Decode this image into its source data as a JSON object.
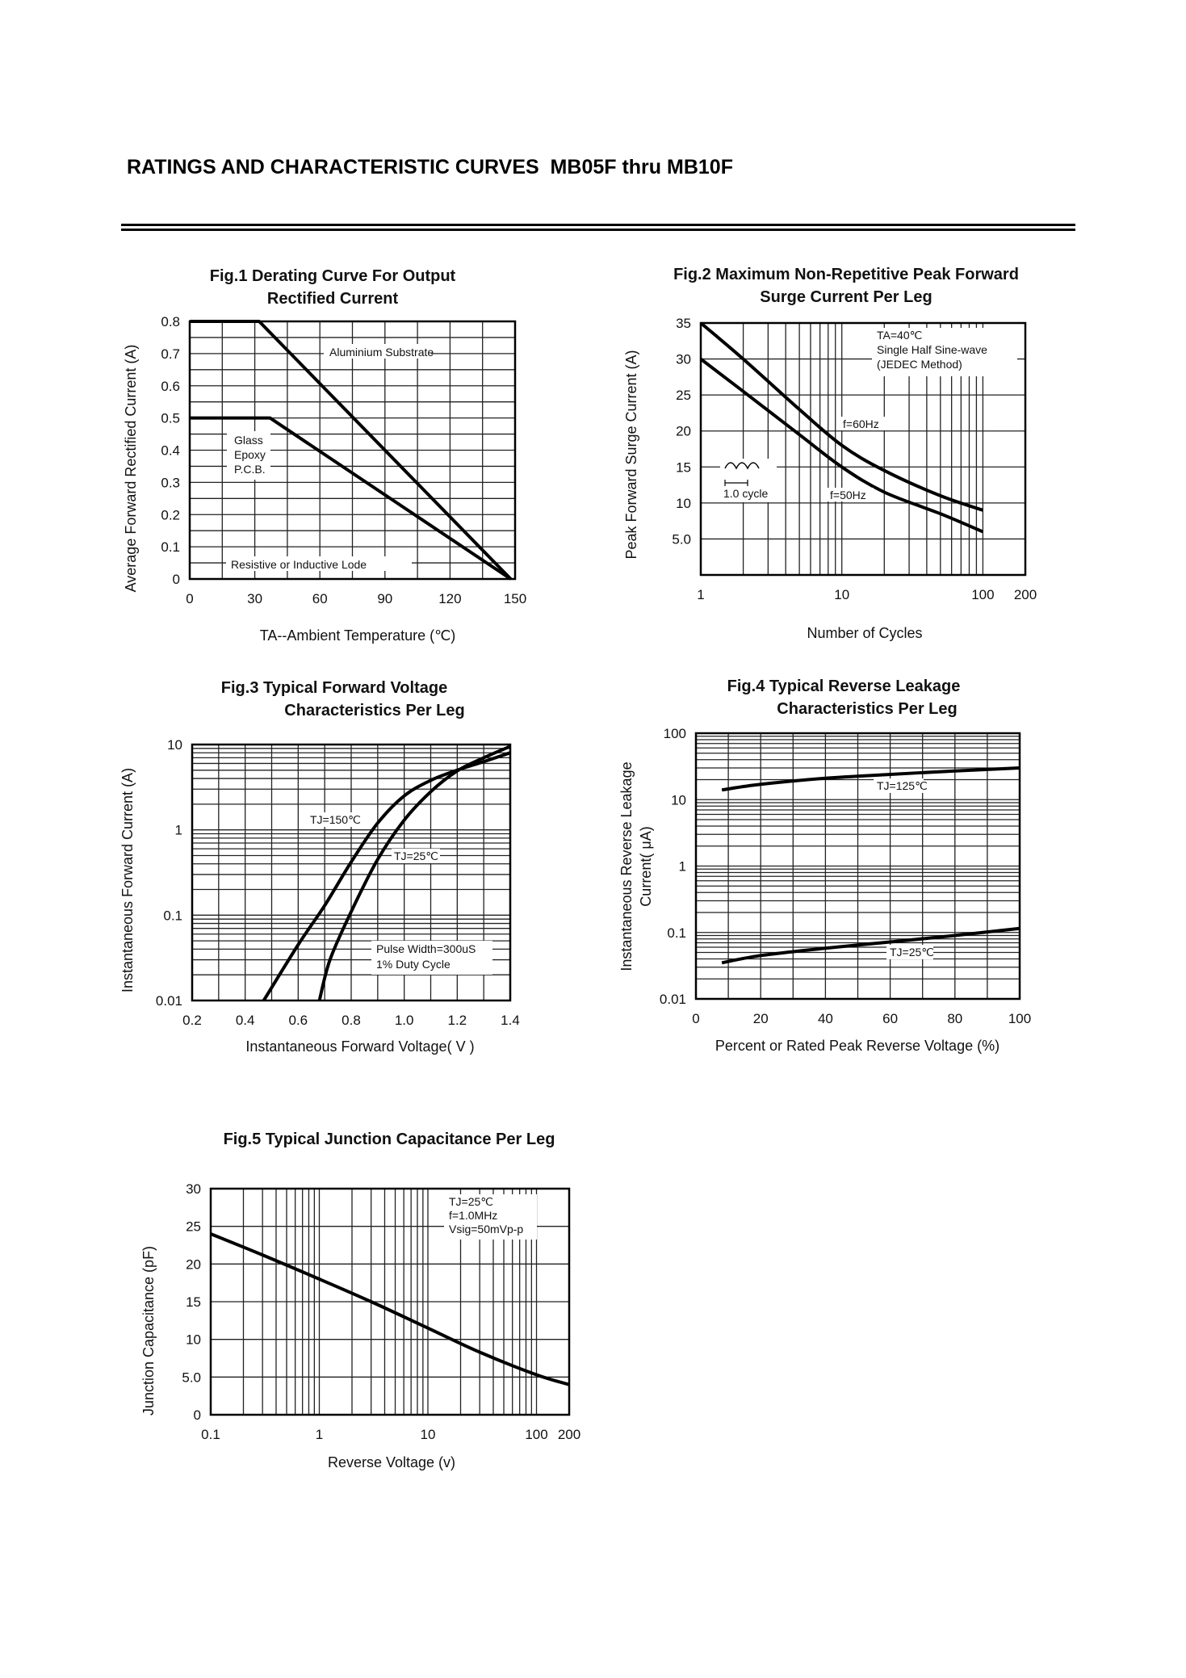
{
  "page": {
    "title": "RATINGS AND CHARACTERISTIC CURVES  MB05F thru MB10F"
  },
  "chart_data": [
    {
      "id": "fig1",
      "type": "line",
      "title_lines": [
        "Fig.1 Derating Curve For Output",
        "Rectified Current"
      ],
      "xlabel": "TA--Ambient Temperature (℃)",
      "ylabel": "Average Forward Rectified Current (A)",
      "xlim": [
        0,
        150
      ],
      "ylim": [
        0,
        0.8
      ],
      "xscale": "linear",
      "yscale": "linear",
      "xticks": [
        0,
        30,
        60,
        90,
        120,
        150
      ],
      "xtick_labels": [
        "0",
        "30",
        "60",
        "90",
        "120",
        "150"
      ],
      "yticks": [
        0,
        0.1,
        0.2,
        0.3,
        0.4,
        0.5,
        0.6,
        0.7,
        0.8
      ],
      "ytick_labels": [
        "0",
        "0.1",
        "0.2",
        "0.3",
        "0.4",
        "0.5",
        "0.6",
        "0.7",
        "0.8"
      ],
      "grid": true,
      "series": [
        {
          "name": "Aluminium Substrate",
          "x": [
            0,
            32,
            148
          ],
          "y": [
            0.8,
            0.8,
            0
          ]
        },
        {
          "name": "Glass Epoxy P.C.B.",
          "x": [
            0,
            37,
            148
          ],
          "y": [
            0.5,
            0.5,
            0
          ]
        }
      ],
      "annotations": [
        "Aluminium Substrate",
        "Glass",
        "Epoxy",
        "P.C.B.",
        "Resistive or Inductive Lode"
      ]
    },
    {
      "id": "fig2",
      "type": "line",
      "title_lines": [
        "Fig.2 Maximum Non-Repetitive Peak Forward",
        "Surge Current Per Leg"
      ],
      "xlabel": "Number of Cycles",
      "ylabel": "Peak Forward Surge Current (A)",
      "xlim": [
        1,
        200
      ],
      "ylim": [
        0,
        35
      ],
      "xscale": "log",
      "yscale": "linear",
      "xticks": [
        1,
        10,
        100,
        200
      ],
      "xtick_labels": [
        "1",
        "10",
        "100",
        "200"
      ],
      "yticks": [
        5,
        10,
        15,
        20,
        25,
        30,
        35
      ],
      "ytick_labels": [
        "5.0",
        "10",
        "15",
        "20",
        "25",
        "30",
        "35"
      ],
      "grid": true,
      "series": [
        {
          "name": "f=60Hz",
          "x": [
            1,
            2,
            5,
            10,
            20,
            50,
            100
          ],
          "y": [
            35,
            30,
            23,
            18,
            14.5,
            11,
            9
          ]
        },
        {
          "name": "f=50Hz",
          "x": [
            1,
            2,
            5,
            10,
            20,
            50,
            100
          ],
          "y": [
            30,
            25.5,
            19.5,
            15,
            11.5,
            8.5,
            6
          ]
        }
      ],
      "annotations": [
        "TA=40℃",
        "Single Half Sine-wave",
        "(JEDEC Method)",
        "f=60Hz",
        "f=50Hz",
        "1.0 cycle"
      ]
    },
    {
      "id": "fig3",
      "type": "line",
      "title_lines": [
        "Fig.3 Typical Forward Voltage",
        "Characteristics Per Leg"
      ],
      "xlabel": "Instantaneous Forward Voltage( V )",
      "ylabel": "Instantaneous Forward Current (A)",
      "xlim": [
        0.2,
        1.4
      ],
      "ylim": [
        0.01,
        10
      ],
      "xscale": "linear",
      "yscale": "log",
      "xticks": [
        0.2,
        0.4,
        0.6,
        0.8,
        1.0,
        1.2,
        1.4
      ],
      "xtick_labels": [
        "0.2",
        "0.4",
        "0.6",
        "0.8",
        "1.0",
        "1.2",
        "1.4"
      ],
      "yticks": [
        0.01,
        0.1,
        1,
        10
      ],
      "ytick_labels": [
        "0.01",
        "0.1",
        "1",
        "10"
      ],
      "grid": true,
      "series": [
        {
          "name": "TJ=150℃",
          "x": [
            0.47,
            0.6,
            0.7,
            0.8,
            0.9,
            1.0,
            1.1,
            1.2,
            1.3,
            1.4
          ],
          "y": [
            0.01,
            0.045,
            0.13,
            0.42,
            1.2,
            2.5,
            3.8,
            5.0,
            6.3,
            8.0
          ]
        },
        {
          "name": "TJ=25℃",
          "x": [
            0.68,
            0.72,
            0.8,
            0.9,
            1.0,
            1.1,
            1.2,
            1.3,
            1.4
          ],
          "y": [
            0.01,
            0.03,
            0.11,
            0.45,
            1.3,
            2.8,
            4.9,
            7.0,
            9.5
          ]
        }
      ],
      "annotations": [
        "TJ=150℃",
        "TJ=25℃",
        "Pulse Width=300uS",
        "1% Duty Cycle"
      ]
    },
    {
      "id": "fig4",
      "type": "line",
      "title_lines": [
        "Fig.4 Typical Reverse Leakage",
        "Characteristics Per Leg"
      ],
      "xlabel": "Percent or Rated Peak Reverse Voltage (%)",
      "ylabel_lines": [
        "Instantaneous Reverse Leakage",
        "Current( μA)"
      ],
      "xlim": [
        0,
        100
      ],
      "ylim": [
        0.01,
        100
      ],
      "xscale": "linear",
      "yscale": "log",
      "xticks": [
        0,
        20,
        40,
        60,
        80,
        100
      ],
      "xtick_labels": [
        "0",
        "20",
        "40",
        "60",
        "80",
        "100"
      ],
      "yticks": [
        0.01,
        0.1,
        1,
        10,
        100
      ],
      "ytick_labels": [
        "0.01",
        "0.1",
        "1",
        "10",
        "100"
      ],
      "grid": true,
      "series": [
        {
          "name": "TJ=125℃",
          "x": [
            8,
            20,
            40,
            60,
            80,
            100
          ],
          "y": [
            14,
            17,
            21,
            24,
            27,
            30
          ]
        },
        {
          "name": "TJ=25℃",
          "x": [
            8,
            20,
            40,
            60,
            80,
            100
          ],
          "y": [
            0.035,
            0.045,
            0.058,
            0.072,
            0.09,
            0.115
          ]
        }
      ],
      "annotations": [
        "TJ=125℃",
        "TJ=25℃"
      ]
    },
    {
      "id": "fig5",
      "type": "line",
      "title_lines": [
        "Fig.5 Typical Junction Capacitance Per Leg"
      ],
      "xlabel": "Reverse Voltage (v)",
      "ylabel": "Junction Capacitance (pF)",
      "xlim": [
        0.1,
        200
      ],
      "ylim": [
        0,
        30
      ],
      "xscale": "log",
      "yscale": "linear",
      "xticks": [
        0.1,
        1,
        10,
        100,
        200
      ],
      "xtick_labels": [
        "0.1",
        "1",
        "10",
        "100",
        "200"
      ],
      "yticks": [
        0,
        5,
        10,
        15,
        20,
        25,
        30
      ],
      "ytick_labels": [
        "0",
        "5.0",
        "10",
        "15",
        "20",
        "25",
        "30"
      ],
      "grid": true,
      "series": [
        {
          "name": "",
          "x": [
            0.1,
            0.3,
            1,
            3,
            10,
            30,
            100,
            200
          ],
          "y": [
            24,
            21.2,
            18,
            15,
            11.5,
            8.3,
            5.3,
            4
          ]
        }
      ],
      "annotations": [
        "TJ=25℃",
        "f=1.0MHz",
        "Vsig=50mVp-p"
      ]
    }
  ]
}
